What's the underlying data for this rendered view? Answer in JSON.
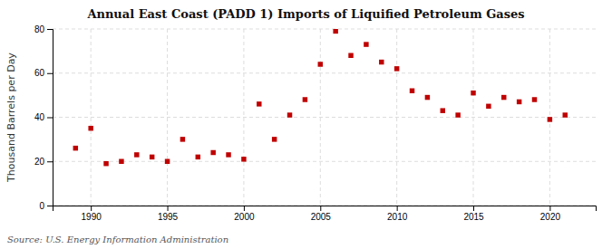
{
  "chart_data": {
    "type": "scatter",
    "title": "Annual East Coast (PADD 1) Imports of Liquified Petroleum Gases",
    "ylabel": "Thousand Barrels per Day",
    "source": "Source: U.S. Energy Information Administration",
    "x": [
      1989,
      1990,
      1991,
      1992,
      1993,
      1994,
      1995,
      1996,
      1997,
      1998,
      1999,
      2000,
      2001,
      2002,
      2003,
      2004,
      2005,
      2006,
      2007,
      2008,
      2009,
      2010,
      2011,
      2012,
      2013,
      2014,
      2015,
      2016,
      2017,
      2018,
      2019,
      2020,
      2021
    ],
    "values": [
      26,
      35,
      19,
      20,
      23,
      22,
      20,
      30,
      22,
      24,
      23,
      21,
      46,
      30,
      41,
      48,
      64,
      79,
      68,
      73,
      65,
      62,
      52,
      49,
      43,
      41,
      51,
      45,
      49,
      47,
      48,
      39,
      41
    ],
    "color": "#c00000",
    "marker": "square",
    "xlim": [
      1987.5,
      2023
    ],
    "ylim": [
      0,
      80
    ],
    "xticks": [
      1990,
      1995,
      2000,
      2005,
      2010,
      2015,
      2020
    ],
    "yticks": [
      0,
      20,
      40,
      60,
      80
    ],
    "grid": true
  }
}
